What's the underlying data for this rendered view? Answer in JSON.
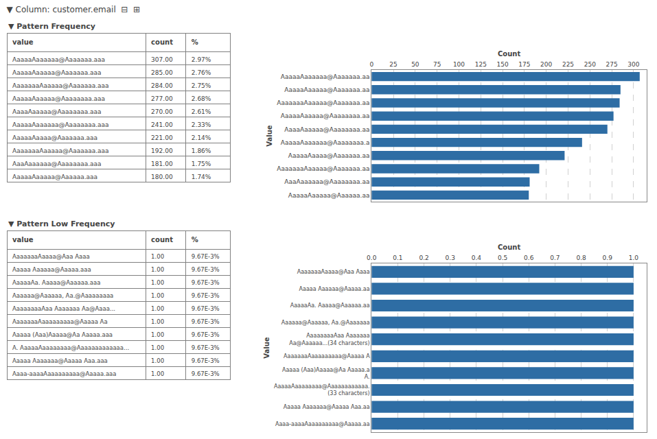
{
  "title": "▼ Column: customer.email  ⊟  ⊞",
  "chart_data": [
    {
      "type": "table",
      "title": "▼ Pattern Frequency",
      "headers": [
        "value",
        "count",
        "%"
      ],
      "rows": [
        [
          "AaaaaAaaaaaa@Aaaaaaa.aaa",
          "307.00",
          "2.97%"
        ],
        [
          "AaaaaAaaaaa@Aaaaaaa.aaa",
          "285.00",
          "2.76%"
        ],
        [
          "AaaaaaaAaaaaa@Aaaaaaa.aaa",
          "284.00",
          "2.75%"
        ],
        [
          "AaaaaAaaaaa@Aaaaaaaa.aaa",
          "277.00",
          "2.68%"
        ],
        [
          "AaaaAaaaaa@Aaaaaaaa.aaa",
          "270.00",
          "2.61%"
        ],
        [
          "AaaaaAaaaaaa@Aaaaaaaa.aaa",
          "241.00",
          "2.33%"
        ],
        [
          "AaaaaAaaaa@Aaaaaaa.aaa",
          "221.00",
          "2.14%"
        ],
        [
          "AaaaaaaAaaaaa@Aaaaaaa.aaa",
          "192.00",
          "1.86%"
        ],
        [
          "AaaAaaaaaa@Aaaaaaaa.aaa",
          "181.00",
          "1.75%"
        ],
        [
          "AaaaaAaaaaa@Aaaaaa.aaa",
          "180.00",
          "1.74%"
        ]
      ]
    },
    {
      "type": "bar",
      "orientation": "horizontal",
      "xlabel": "Count",
      "ylabel": "Value",
      "categories": [
        "AaaaaAaaaaaa@Aaaaaaa.aa",
        "AaaaaAaaaaa@Aaaaaaa.aa",
        "AaaaaaaAaaaaa@Aaaaaaa.aa",
        "AaaaaAaaaaa@Aaaaaaaa.aa",
        "AaaaAaaaaa@Aaaaaaaa.aa",
        "AaaaaAaaaaaa@Aaaaaaaa.a",
        "AaaaaAaaaa@Aaaaaaa.aa",
        "AaaaaaaAaaaaa@Aaaaaaa.aa",
        "AaaAaaaaaa@Aaaaaaaa.aa",
        "AaaaaAaaaaa@Aaaaaa.aa"
      ],
      "values": [
        307,
        285,
        284,
        277,
        270,
        241,
        221,
        192,
        181,
        180
      ],
      "color": "#2E6DA4",
      "xlim": [
        0,
        315
      ],
      "xticks": [
        0,
        25,
        50,
        75,
        100,
        125,
        150,
        175,
        200,
        225,
        250,
        275,
        300
      ],
      "grid": true
    },
    {
      "type": "table",
      "title": "▼ Pattern Low Frequency",
      "headers": [
        "value",
        "count",
        "%"
      ],
      "rows": [
        [
          "AaaaaaaAaaaa@Aaa Aaaa",
          "1.00",
          "9.67E-3%"
        ],
        [
          "Aaaaa Aaaaaa@Aaaaa.aaa",
          "1.00",
          "9.67E-3%"
        ],
        [
          "AaaaaAa. Aaaaa@Aaaaaa.aaa",
          "1.00",
          "9.67E-3%"
        ],
        [
          "Aaaaaa@Aaaaaa, Aa.@Aaaaaaaaa",
          "1.00",
          "9.67E-3%"
        ],
        [
          "AaaaaaaaAaa Aaaaaaa Aa@Aaaa...",
          "1.00",
          "9.67E-3%"
        ],
        [
          "AaaaaaaAaaaaaaaaa@Aaaaa Aa",
          "1.00",
          "9.67E-3%"
        ],
        [
          "Aaaaa (Aaa)Aaaaa@Aa Aaaaa.aaa",
          "1.00",
          "9.67E-3%"
        ],
        [
          "A. AaaaaAaaaaaaaa@Aaaaaaaaaaaaa...",
          "1.00",
          "9.67E-3%"
        ],
        [
          "Aaaaa Aaaaaaa@Aaaaa Aaa.aaa",
          "1.00",
          "9.67E-3%"
        ],
        [
          "Aaaa-aaaaAaaaaaaaaa@Aaaaa.aaa",
          "1.00",
          "9.67E-3%"
        ]
      ]
    },
    {
      "type": "bar",
      "orientation": "horizontal",
      "xlabel": "Count",
      "ylabel": "Value",
      "categories": [
        "AaaaaaaAaaaa@Aaa Aaaa",
        "Aaaaa Aaaaaa@Aaaaa.aa",
        "AaaaaAa. Aaaaa@Aaaaaa.aa",
        "Aaaaaa@Aaaaaa, Aa.@Aaaaaaa",
        "AaaaaaaaAaa Aaaaaaa\nAa@Aaaaaa...(34 characters)",
        "AaaaaaaAaaaaaaaaa@Aaaaa A",
        "Aaaaa (Aaa)Aaaaa@Aa Aaaaa.a\nA.",
        "AaaaaAaaaaaaaa@Aaaaaaaaaaaa.\n(33 characters)",
        "Aaaaa Aaaaaaa@Aaaaa Aaa.aa",
        "Aaaa-aaaaAaaaaaaaaa@Aaaaa.aa"
      ],
      "values": [
        1,
        1,
        1,
        1,
        1,
        1,
        1,
        1,
        1,
        1
      ],
      "color": "#2E6DA4",
      "xlim": [
        0,
        1.05
      ],
      "xticks": [
        {
          "value": 0.0,
          "label": "0.0"
        },
        0.1,
        0.2,
        0.3,
        0.4,
        0.5,
        0.6,
        0.7,
        0.8,
        0.9,
        {
          "value": 1.0,
          "label": "1.0"
        }
      ],
      "grid": true
    }
  ]
}
